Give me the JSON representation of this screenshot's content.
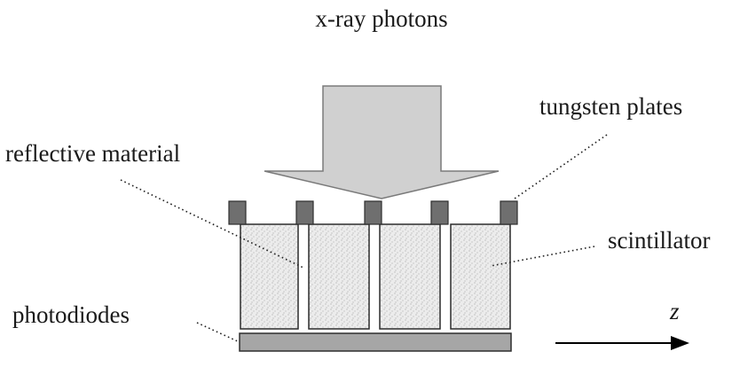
{
  "labels": {
    "photons": "x-ray photons",
    "tungsten": "tungsten plates",
    "reflective": "reflective material",
    "scintillator": "scintillator",
    "photodiodes": "photodiodes",
    "axis": "z"
  },
  "counts": {
    "scintillator_cells": 4,
    "tungsten_plates": 5
  },
  "colors": {
    "plate": "#6f6f6f",
    "photodiode": "#a6a6a6",
    "photon_arrow": "#d0d0d0",
    "scintillator_fill": "#ececec",
    "line": "#222222"
  }
}
